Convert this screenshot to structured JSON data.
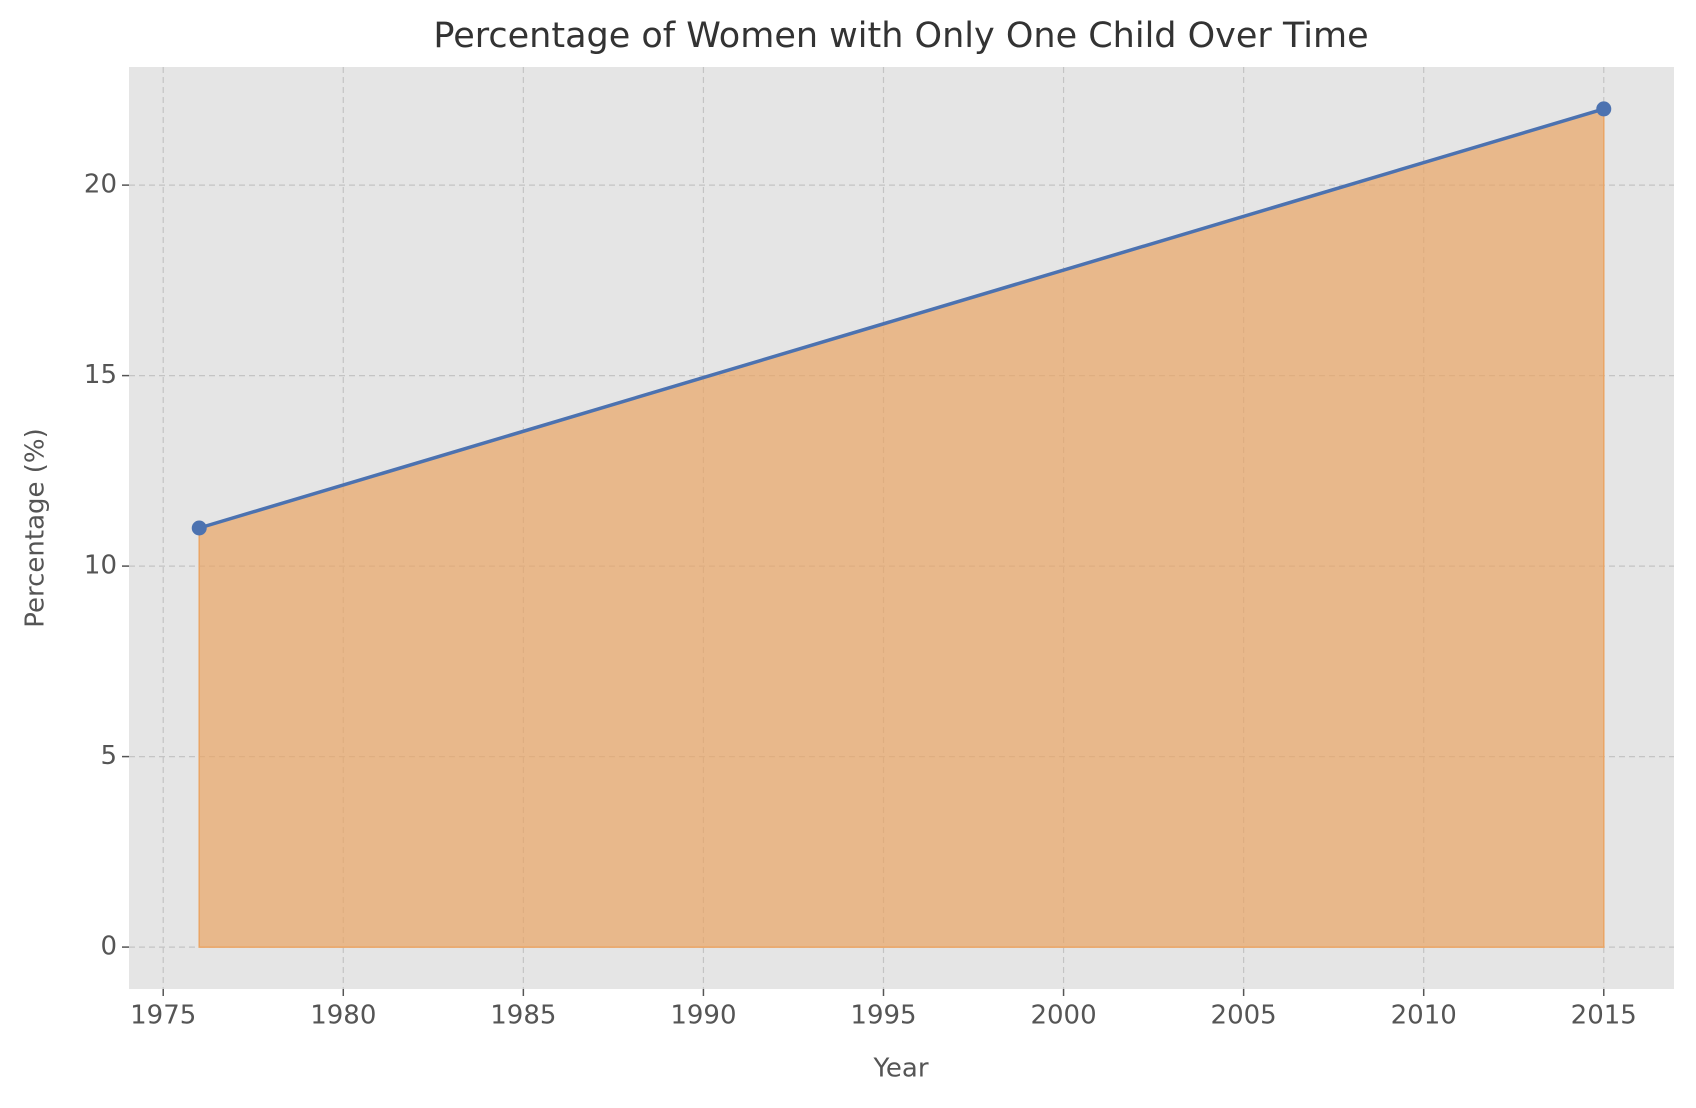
{
  "chart_data": {
    "type": "area",
    "title": "Percentage of Women with Only One Child Over Time",
    "x_label": "Year",
    "y_label": "Percentage (%)",
    "x": [
      1976,
      2015
    ],
    "series": [
      {
        "values": [
          11,
          22
        ],
        "color": "#4c72b0",
        "fill_color": "#eaa565"
      }
    ],
    "xlim": [
      1974.05,
      2016.95
    ],
    "xticks": [
      1975,
      1980,
      1985,
      1990,
      1995,
      2000,
      2005,
      2010,
      2015
    ],
    "ylim": [
      -1.1,
      23.1
    ],
    "yticks": [
      0,
      5,
      10,
      15,
      20
    ],
    "grid": true
  }
}
